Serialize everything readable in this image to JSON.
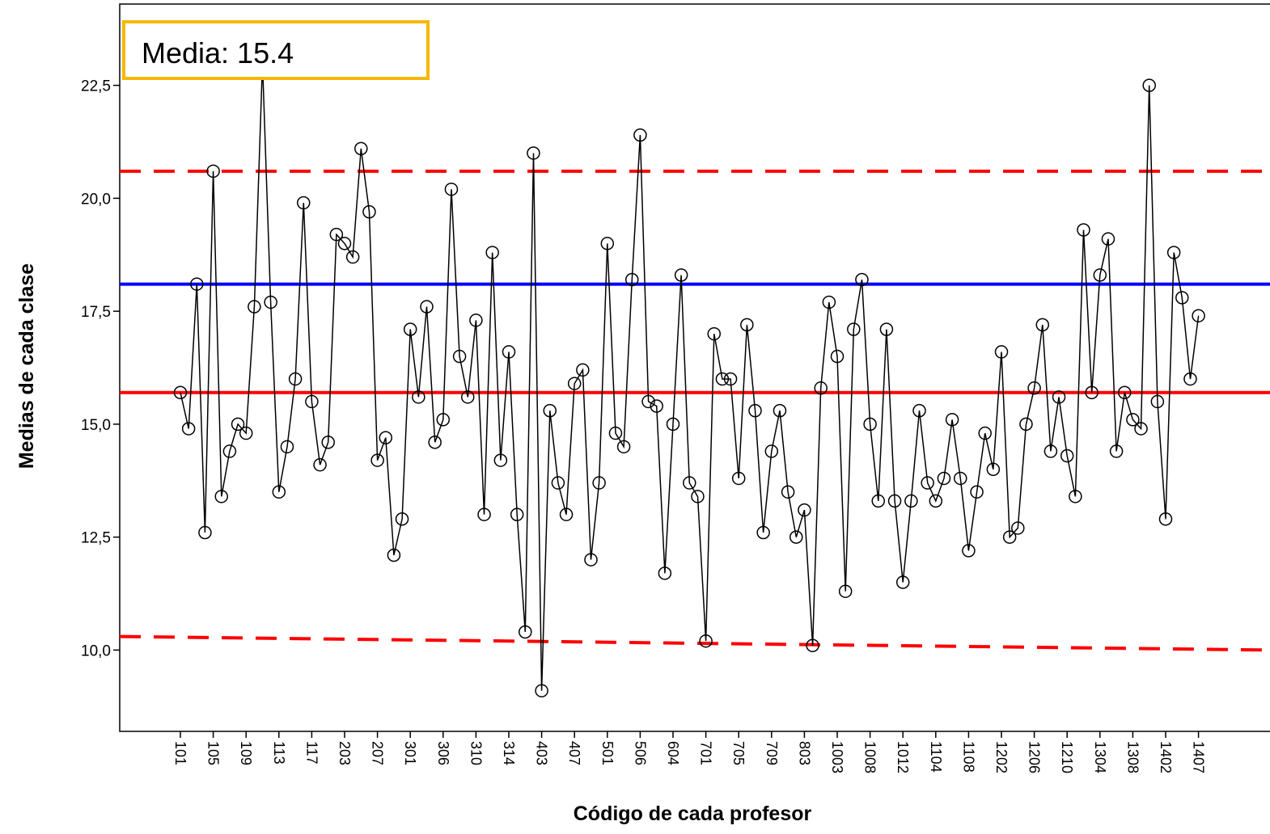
{
  "chart_data": {
    "type": "line",
    "xlabel": "Código de cada profesor",
    "ylabel": "Medias de cada clase",
    "yticks": [
      "10,0",
      "12,5",
      "15,0",
      "17,5",
      "20,0",
      "22,5"
    ],
    "ytick_values": [
      10.0,
      12.5,
      15.0,
      17.5,
      20.0,
      22.5
    ],
    "ylim": [
      8.2,
      24.3
    ],
    "xticks": [
      "101",
      "105",
      "109",
      "113",
      "117",
      "203",
      "207",
      "301",
      "306",
      "310",
      "314",
      "403",
      "407",
      "501",
      "506",
      "604",
      "701",
      "705",
      "709",
      "803",
      "1003",
      "1008",
      "1012",
      "1104",
      "1108",
      "1202",
      "1206",
      "1210",
      "1304",
      "1308",
      "1402",
      "1407"
    ],
    "series": [
      {
        "values": [
          15.7,
          14.9,
          18.1,
          12.6,
          20.6,
          13.4,
          14.4,
          15.0,
          14.8,
          17.6,
          23.0,
          17.7,
          13.5,
          14.5,
          16.0,
          19.9,
          15.5,
          14.1,
          14.6,
          19.2,
          19.0,
          18.7,
          21.1,
          19.7,
          14.2,
          14.7,
          12.1,
          12.9,
          17.1,
          15.6,
          17.6,
          14.6,
          15.1,
          20.2,
          16.5,
          15.6,
          17.3,
          13.0,
          18.8,
          14.2,
          16.6,
          13.0,
          10.4,
          21.0,
          9.1,
          15.3,
          13.7,
          13.0,
          15.9,
          16.2,
          12.0,
          13.7,
          19.0,
          14.8,
          14.5,
          18.2,
          21.4,
          15.5,
          15.4,
          11.7,
          15.0,
          18.3,
          13.7,
          13.4,
          10.2,
          17.0,
          16.0,
          16.0,
          13.8,
          17.2,
          15.3,
          12.6,
          14.4,
          15.3,
          13.5,
          12.5,
          13.1,
          10.1,
          15.8,
          17.7,
          16.5,
          11.3,
          17.1,
          18.2,
          15.0,
          13.3,
          17.1,
          13.3,
          11.5,
          13.3,
          15.3,
          13.7,
          13.3,
          13.8,
          15.1,
          13.8,
          12.2,
          13.5,
          14.8,
          14.0,
          16.6,
          12.5,
          12.7,
          15.0,
          15.8,
          17.2,
          14.4,
          15.6,
          14.3,
          13.4,
          19.3,
          15.7,
          18.3,
          19.1,
          14.4,
          15.7,
          15.1,
          14.9,
          22.5,
          15.5,
          12.9,
          18.8,
          17.8,
          16.0,
          17.4
        ]
      }
    ],
    "reference_lines": [
      {
        "style": "dashed",
        "color": "#ff0000",
        "y": 20.6
      },
      {
        "style": "solid",
        "color": "#0000ff",
        "y": 18.1
      },
      {
        "style": "solid",
        "color": "#ff0000",
        "y": 15.7
      },
      {
        "style": "dashed",
        "color": "#ff0000",
        "y_start": 10.3,
        "y_end": 10.0
      }
    ],
    "annotation": "Media: 15.4",
    "grid": false
  }
}
